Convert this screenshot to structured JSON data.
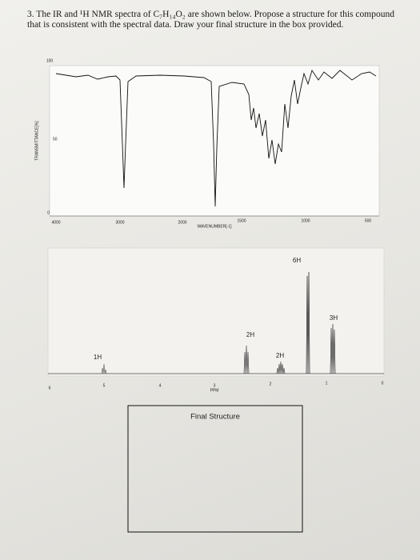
{
  "question": {
    "text": "3. The IR and ¹H NMR spectra of C₇H₁₄O₂ are shown below. Propose a structure for this compound that is consistent with the spectral data. Draw your final structure in the box provided."
  },
  "ir": {
    "y_ticks": [
      "100",
      "50",
      "0"
    ],
    "y_label": "TRANSMITTANCE[%]",
    "x_ticks": [
      "4000",
      "3000",
      "2000",
      "1500",
      "1000",
      "500"
    ],
    "x_label": "WAVENUMBER[-1]"
  },
  "nmr": {
    "peaks": [
      "1H",
      "2H",
      "2H",
      "6H",
      "3H"
    ],
    "x_ticks": [
      "6",
      "5",
      "4",
      "3",
      "2",
      "1",
      "0"
    ],
    "x_label": "PPM"
  },
  "answer_box": {
    "label": "Final Structure"
  }
}
